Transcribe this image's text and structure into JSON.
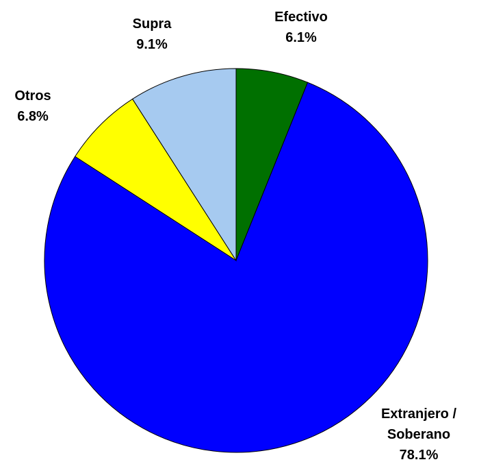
{
  "chart_data": {
    "type": "pie",
    "categories": [
      "Efectivo",
      "Extranjero / Soberano",
      "Otros",
      "Supra"
    ],
    "values": [
      6.1,
      78.1,
      6.8,
      9.1
    ],
    "value_labels": [
      "6.1%",
      "78.1%",
      "6.8%",
      "9.1%"
    ],
    "colors": [
      "#007000",
      "#0000ff",
      "#ffff00",
      "#a6caf0"
    ]
  }
}
